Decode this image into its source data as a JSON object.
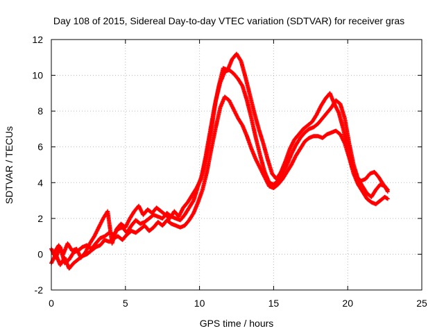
{
  "chart_data": {
    "type": "scatter",
    "title": "Day 108 of 2015, Sidereal Day-to-day VTEC variation (SDTVAR) for receiver gras",
    "xlabel": "GPS time / hours",
    "ylabel": "SDTVAR / TECUs",
    "xlim": [
      0,
      25
    ],
    "ylim": [
      -2,
      12
    ],
    "xticks": [
      0,
      5,
      10,
      15,
      20,
      25
    ],
    "yticks": [
      -2,
      0,
      2,
      4,
      6,
      8,
      10,
      12
    ],
    "grid": true,
    "marker": "+",
    "color": "#ff0000",
    "series": [
      {
        "name": "trace-a",
        "x": [
          0.0,
          0.3,
          0.6,
          0.9,
          1.2,
          1.5,
          1.8,
          2.1,
          2.4,
          2.7,
          3.0,
          3.3,
          3.6,
          3.9,
          4.2,
          4.5,
          4.8,
          5.1,
          5.4,
          5.7,
          6.0,
          6.3,
          6.6,
          6.9,
          7.2,
          7.5,
          7.8,
          8.1,
          8.4,
          8.7,
          9.0,
          9.3,
          9.6,
          9.9,
          10.2,
          10.5,
          10.8,
          11.1,
          11.4,
          11.7,
          12.0,
          12.3,
          12.6,
          12.9,
          13.2,
          13.5,
          13.8,
          14.1,
          14.4,
          14.7,
          15.0,
          15.3,
          15.6,
          15.9,
          16.2,
          16.5,
          16.8,
          17.1,
          17.4,
          17.7,
          18.0,
          18.3,
          18.6,
          18.9,
          19.2,
          19.5,
          19.8,
          20.1,
          20.4,
          20.7,
          21.0,
          21.3,
          21.6,
          21.9,
          22.2,
          22.5,
          22.7
        ],
        "y": [
          0.3,
          -0.2,
          0.4,
          -0.5,
          -0.3,
          0.1,
          0.2,
          0.4,
          0.5,
          0.3,
          0.6,
          0.9,
          1.0,
          1.2,
          1.1,
          1.4,
          1.5,
          1.2,
          1.6,
          1.9,
          1.7,
          1.8,
          2.0,
          2.2,
          2.1,
          2.0,
          2.3,
          2.1,
          2.0,
          1.9,
          2.2,
          2.6,
          3.0,
          3.8,
          4.5,
          5.6,
          7.0,
          8.6,
          9.6,
          10.2,
          10.3,
          10.1,
          9.8,
          9.4,
          8.6,
          7.6,
          6.5,
          5.5,
          4.6,
          4.0,
          3.9,
          4.1,
          4.5,
          5.0,
          5.6,
          6.1,
          6.5,
          6.8,
          7.0,
          7.1,
          7.3,
          7.6,
          7.9,
          8.2,
          8.6,
          8.4,
          7.6,
          6.2,
          5.0,
          4.2,
          3.8,
          3.4,
          3.2,
          3.6,
          3.9,
          3.8,
          3.5
        ]
      },
      {
        "name": "trace-b",
        "x": [
          0.0,
          0.3,
          0.6,
          0.9,
          1.2,
          1.5,
          1.8,
          2.1,
          2.4,
          2.7,
          3.0,
          3.3,
          3.6,
          3.9,
          4.2,
          4.5,
          4.8,
          5.1,
          5.4,
          5.7,
          6.0,
          6.3,
          6.6,
          6.9,
          7.2,
          7.5,
          7.8,
          8.1,
          8.4,
          8.7,
          9.0,
          9.3,
          9.6,
          9.9,
          10.2,
          10.5,
          10.8,
          11.1,
          11.4,
          11.7,
          12.0,
          12.3,
          12.6,
          12.9,
          13.2,
          13.5,
          13.8,
          14.1,
          14.4,
          14.7,
          15.0,
          15.3,
          15.6,
          15.9,
          16.2,
          16.5,
          16.8,
          17.1,
          17.4,
          17.7,
          18.0,
          18.3,
          18.6,
          18.9,
          19.2,
          19.5,
          19.8,
          20.1,
          20.4,
          20.7,
          21.0,
          21.3,
          21.6,
          21.9,
          22.2,
          22.5,
          22.7
        ],
        "y": [
          -0.5,
          0.0,
          -0.6,
          -0.2,
          -0.8,
          -0.5,
          -0.3,
          -0.1,
          0.0,
          0.2,
          0.4,
          0.5,
          0.8,
          0.7,
          0.9,
          1.0,
          0.8,
          1.1,
          1.3,
          1.2,
          1.4,
          1.6,
          1.3,
          1.5,
          1.8,
          1.6,
          1.9,
          1.7,
          1.6,
          1.5,
          1.6,
          1.9,
          2.3,
          2.9,
          3.6,
          4.6,
          5.9,
          7.1,
          8.2,
          8.8,
          8.6,
          8.1,
          7.6,
          7.2,
          6.6,
          5.9,
          5.3,
          4.8,
          4.3,
          3.8,
          3.7,
          3.9,
          4.2,
          4.6,
          5.0,
          5.5,
          5.9,
          6.3,
          6.5,
          6.6,
          6.6,
          6.5,
          6.7,
          6.8,
          6.9,
          6.7,
          6.2,
          5.4,
          4.5,
          3.9,
          3.5,
          3.1,
          2.9,
          2.8,
          3.0,
          3.2,
          3.1
        ]
      },
      {
        "name": "trace-c",
        "x": [
          0.2,
          0.5,
          0.8,
          1.1,
          1.4,
          1.7,
          2.0,
          2.3,
          2.6,
          2.9,
          3.2,
          3.5,
          3.8,
          4.1,
          4.4,
          4.7,
          5.0,
          5.3,
          5.6,
          5.9,
          6.2,
          6.5,
          6.8,
          7.1,
          7.4,
          7.7,
          8.0,
          8.3,
          8.6,
          8.9,
          9.2,
          9.5,
          9.8,
          10.1,
          10.4,
          10.7,
          11.0,
          11.3,
          11.6,
          11.9,
          12.2,
          12.5,
          12.8,
          13.1,
          13.4,
          13.7,
          14.0,
          14.3,
          14.6,
          14.9,
          15.2,
          15.5,
          15.8,
          16.1,
          16.4,
          16.7,
          17.0,
          17.3,
          17.6,
          17.9,
          18.2,
          18.5,
          18.8,
          19.1,
          19.4,
          19.7,
          20.0,
          20.3,
          20.6,
          20.9,
          21.2,
          21.5,
          21.8,
          22.1,
          22.4,
          22.7
        ],
        "y": [
          0.1,
          0.5,
          0.0,
          0.6,
          0.2,
          0.3,
          -0.2,
          0.1,
          0.6,
          1.0,
          1.5,
          2.0,
          2.4,
          0.6,
          1.4,
          1.7,
          1.5,
          2.0,
          2.4,
          2.7,
          2.2,
          2.5,
          2.3,
          2.6,
          2.4,
          2.2,
          2.0,
          2.4,
          2.1,
          2.6,
          2.9,
          3.3,
          3.7,
          4.2,
          5.4,
          6.8,
          8.2,
          9.4,
          10.4,
          10.3,
          10.9,
          11.2,
          10.8,
          9.9,
          8.9,
          7.9,
          7.0,
          6.2,
          5.3,
          4.5,
          4.2,
          4.6,
          5.2,
          5.9,
          6.4,
          6.7,
          7.0,
          7.2,
          7.4,
          7.8,
          8.3,
          8.7,
          9.0,
          8.4,
          7.9,
          7.0,
          5.9,
          4.9,
          4.3,
          4.1,
          4.2,
          4.5,
          4.6,
          4.3,
          3.9,
          3.6
        ]
      }
    ]
  }
}
